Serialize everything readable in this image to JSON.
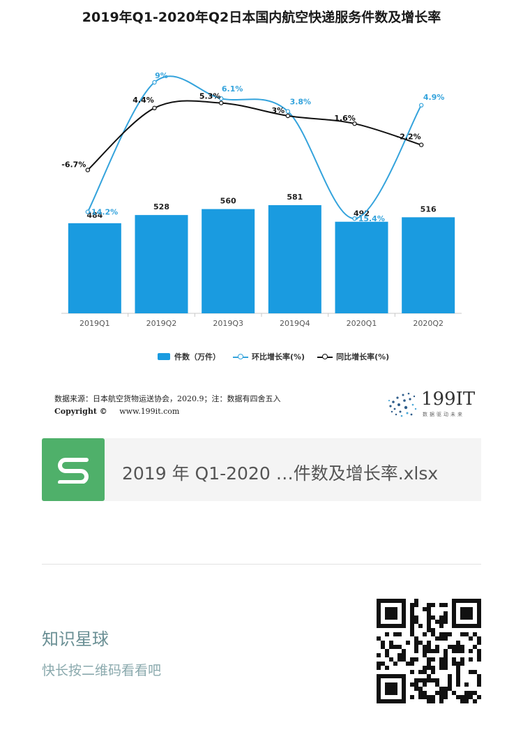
{
  "title": "2019年Q1-2020年Q2日本国内航空快递服务件数及增长率",
  "chart_data": {
    "type": "bar",
    "categories": [
      "2019Q1",
      "2019Q2",
      "2019Q3",
      "2019Q4",
      "2020Q1",
      "2020Q2"
    ],
    "series": [
      {
        "name": "件数（万件）",
        "type": "bar",
        "values": [
          484,
          528,
          560,
          581,
          492,
          516
        ],
        "labels": [
          "484",
          "528",
          "560",
          "581",
          "492",
          "516"
        ]
      },
      {
        "name": "环比增长率(%)",
        "type": "line",
        "values": [
          -14.2,
          9,
          6.1,
          3.8,
          -15.4,
          4.9
        ],
        "labels": [
          "-14.2%",
          "9%",
          "6.1%",
          "3.8%",
          "-15.4%",
          "4.9%"
        ]
      },
      {
        "name": "同比增长率(%)",
        "type": "line",
        "values": [
          -6.7,
          4.4,
          5.3,
          3,
          1.6,
          -2.2
        ],
        "labels": [
          "-6.7%",
          "4.4%",
          "5.3%",
          "3%",
          "1.6%",
          "-2.2%"
        ]
      }
    ],
    "colors": {
      "bar": "#1a9be0",
      "mom_line": "#34a3dc",
      "yoy_line": "#111111"
    },
    "legend_placement": "bottom",
    "grid": false
  },
  "legend": {
    "bar": "件数（万件）",
    "mom": "环比增长率(%)",
    "yoy": "同比增长率(%)"
  },
  "source": {
    "text": "数据来源：日本航空货物运送协会，2020.9；注：数据有四舍五入",
    "copyright": "Copyright ©",
    "site": "www.199it.com"
  },
  "logo": {
    "text": "199IT",
    "sub": "数据驱动未来"
  },
  "file_card": {
    "icon": "spreadsheet-s-icon",
    "name": "2019 年 Q1-2020 …件数及增长率.xlsx",
    "icon_color": "#4fb06a"
  },
  "promo": {
    "title": "知识星球",
    "subtitle": "快长按二维码看看吧"
  }
}
